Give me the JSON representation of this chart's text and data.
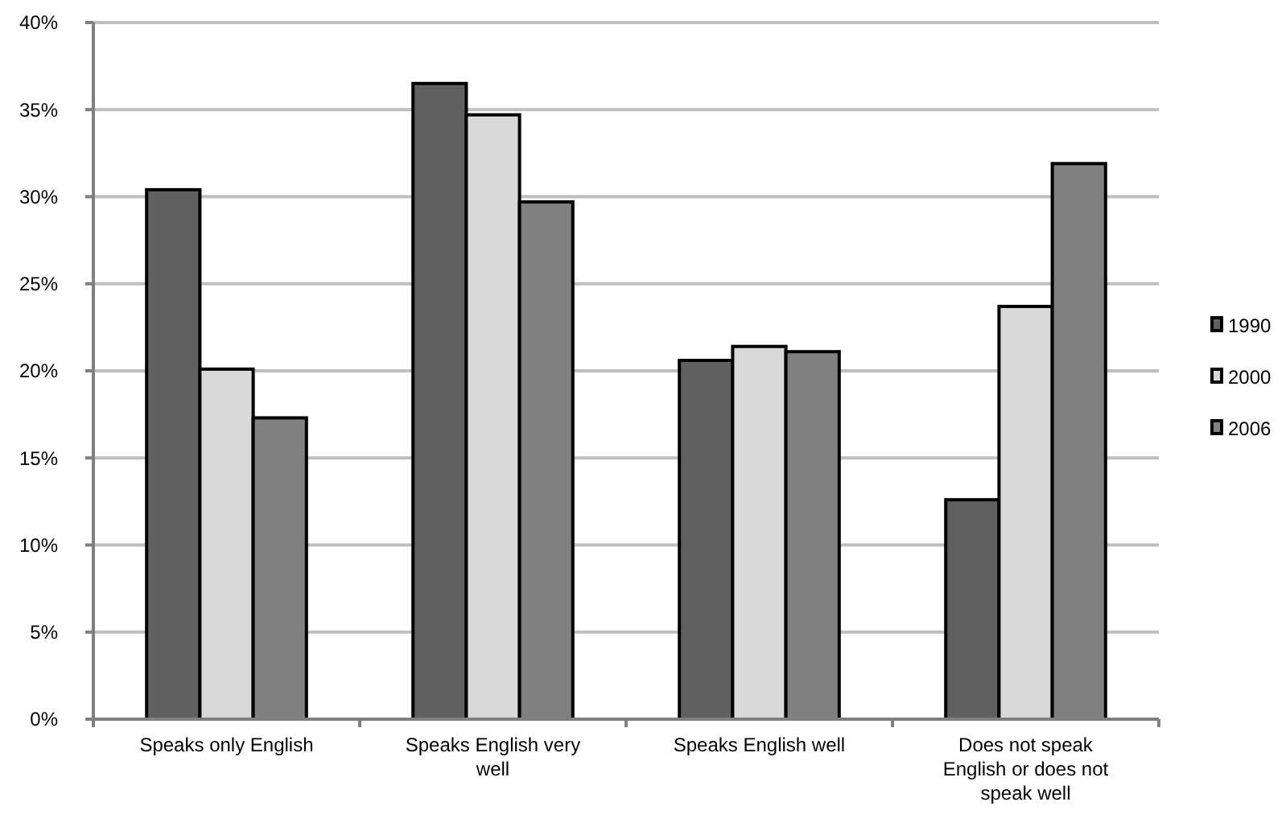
{
  "chart_data": {
    "type": "bar",
    "categories": [
      "Speaks only English",
      "Speaks English very well",
      "Speaks English well",
      "Does not speak English or does not speak well"
    ],
    "series": [
      {
        "name": "1990",
        "color": "#606060",
        "values": [
          30.4,
          36.5,
          20.6,
          12.6
        ]
      },
      {
        "name": "2000",
        "color": "#d9d9d9",
        "values": [
          20.1,
          34.7,
          21.4,
          23.7
        ]
      },
      {
        "name": "2006",
        "color": "#808080",
        "values": [
          17.3,
          29.7,
          21.1,
          31.9
        ]
      }
    ],
    "ylim": [
      0,
      40
    ],
    "yticks": [
      {
        "value": 0,
        "label": "0%"
      },
      {
        "value": 5,
        "label": "5%"
      },
      {
        "value": 10,
        "label": "10%"
      },
      {
        "value": 15,
        "label": "15%"
      },
      {
        "value": 20,
        "label": "20%"
      },
      {
        "value": 25,
        "label": "25%"
      },
      {
        "value": 30,
        "label": "30%"
      },
      {
        "value": 35,
        "label": "35%"
      },
      {
        "value": 40,
        "label": "40%"
      }
    ],
    "grid": "y",
    "legend": "right"
  }
}
